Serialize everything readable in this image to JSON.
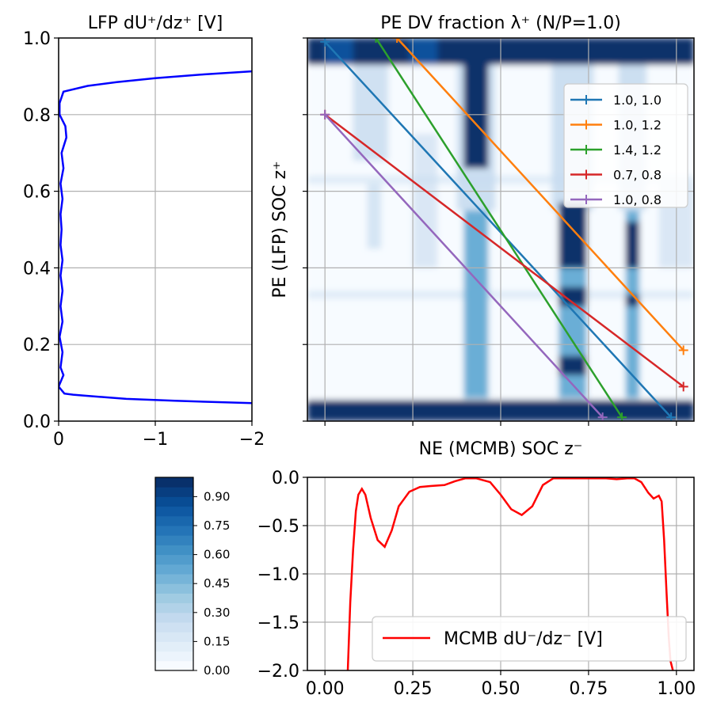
{
  "chart_data": [
    {
      "id": "lfp",
      "type": "line",
      "title": "LFP dU⁺/dz⁺ [V]",
      "xlabel": "",
      "ylabel": "",
      "xlim": [
        0,
        -2
      ],
      "ylim": [
        0,
        1
      ],
      "xticks": [
        "0",
        "−1",
        "−2"
      ],
      "yticks": [
        "0.0",
        "0.2",
        "0.4",
        "0.6",
        "0.8",
        "1.0"
      ],
      "grid": true,
      "color": "#0000ff",
      "series": [
        {
          "name": "LFP dU+/dz+",
          "x": [
            -2.0,
            -1.2,
            -0.7,
            -0.5,
            -0.3,
            -0.15,
            -0.06,
            0.0,
            -0.05,
            -0.02,
            -0.04,
            -0.01,
            -0.04,
            -0.02,
            -0.04,
            -0.02,
            -0.04,
            -0.02,
            -0.03,
            -0.02,
            -0.04,
            -0.02,
            -0.05,
            -0.03,
            -0.08,
            -0.07,
            -0.01,
            -0.01,
            -0.05,
            -0.3,
            -0.6,
            -1.0,
            -1.5,
            -2.0
          ],
          "y": [
            0.047,
            0.053,
            0.058,
            0.062,
            0.066,
            0.069,
            0.072,
            0.09,
            0.12,
            0.14,
            0.18,
            0.22,
            0.26,
            0.3,
            0.34,
            0.38,
            0.42,
            0.46,
            0.5,
            0.54,
            0.58,
            0.62,
            0.66,
            0.7,
            0.74,
            0.77,
            0.8,
            0.83,
            0.86,
            0.875,
            0.885,
            0.895,
            0.905,
            0.913
          ]
        }
      ]
    },
    {
      "id": "dvmap",
      "type": "heatmap",
      "title": "PE DV fraction λ⁺  (N/P=1.0)",
      "xlabel": "NE (MCMB) SOC z⁻",
      "ylabel": "PE (LFP) SOC z⁺",
      "xlim": [
        -0.05,
        1.05
      ],
      "ylim": [
        0,
        1
      ],
      "grid": true,
      "heat_regions": {
        "dark_x_bands": [
          [
            0.395,
            0.465
          ],
          [
            0.665,
            0.745
          ],
          [
            0.855,
            0.895
          ]
        ],
        "dark_y_bands": [
          [
            0.0,
            0.055
          ],
          [
            0.93,
            1.0
          ]
        ],
        "medium_x_bands": [
          [
            0.395,
            0.465
          ],
          [
            0.665,
            0.745
          ],
          [
            0.855,
            0.895
          ]
        ],
        "medium_y_bands": [
          [
            0.06,
            0.55
          ]
        ],
        "dark_patches": [
          [
            0.395,
            0.465,
            0.66,
            1.0
          ],
          [
            0.665,
            0.745,
            0.4,
            0.57
          ],
          [
            0.665,
            0.745,
            0.3,
            0.35
          ],
          [
            0.665,
            0.745,
            0.12,
            0.17
          ],
          [
            0.855,
            0.895,
            0.4,
            0.52
          ],
          [
            0.855,
            0.895,
            0.3,
            0.33
          ]
        ],
        "colors": [
          "#08306b",
          "#08519c",
          "#2171b5",
          "#6baed6",
          "#c6dbef",
          "#f7fbff"
        ]
      },
      "legend_position": "upper right",
      "series": [
        {
          "name": "1.0, 1.0",
          "color": "#1f77b4",
          "x": [
            0.0,
            0.985
          ],
          "y": [
            0.99,
            0.01
          ]
        },
        {
          "name": "1.0, 1.2",
          "color": "#ff7f0e",
          "x": [
            0.205,
            1.02
          ],
          "y": [
            1.0,
            0.185
          ]
        },
        {
          "name": "1.4, 1.2",
          "color": "#2ca02c",
          "x": [
            0.145,
            0.845
          ],
          "y": [
            1.0,
            0.01
          ]
        },
        {
          "name": "0.7, 0.8",
          "color": "#d62728",
          "x": [
            0.0,
            1.02
          ],
          "y": [
            0.8,
            0.09
          ]
        },
        {
          "name": "1.0, 0.8",
          "color": "#9467bd",
          "x": [
            0.0,
            0.79
          ],
          "y": [
            0.8,
            0.01
          ]
        }
      ]
    },
    {
      "id": "mcmb",
      "type": "line",
      "title": "",
      "xlabel": "",
      "ylabel": "",
      "xlim": [
        -0.05,
        1.05
      ],
      "ylim": [
        -2.0,
        0.0
      ],
      "xticks": [
        "0.00",
        "0.25",
        "0.50",
        "0.75",
        "1.00"
      ],
      "yticks": [
        "0.0",
        "−0.5",
        "−1.0",
        "−1.5",
        "−2.0"
      ],
      "grid": true,
      "legend_position": "lower right",
      "legend_label": "MCMB dU⁻/dz⁻  [V]",
      "color": "#ff0000",
      "series": [
        {
          "name": "MCMB dU-/dz-",
          "x": [
            0.065,
            0.072,
            0.08,
            0.088,
            0.095,
            0.105,
            0.115,
            0.13,
            0.15,
            0.17,
            0.19,
            0.21,
            0.24,
            0.27,
            0.3,
            0.34,
            0.37,
            0.4,
            0.43,
            0.47,
            0.5,
            0.53,
            0.56,
            0.59,
            0.62,
            0.65,
            0.7,
            0.75,
            0.8,
            0.83,
            0.86,
            0.88,
            0.9,
            0.92,
            0.935,
            0.95,
            0.958,
            0.965,
            0.972,
            0.978,
            0.983,
            0.99
          ],
          "y": [
            -2.0,
            -1.3,
            -0.75,
            -0.35,
            -0.18,
            -0.12,
            -0.18,
            -0.42,
            -0.65,
            -0.72,
            -0.55,
            -0.3,
            -0.15,
            -0.1,
            -0.09,
            -0.08,
            -0.04,
            -0.01,
            -0.01,
            -0.05,
            -0.18,
            -0.33,
            -0.39,
            -0.3,
            -0.08,
            -0.01,
            -0.01,
            -0.01,
            -0.01,
            -0.02,
            -0.01,
            -0.01,
            -0.05,
            -0.16,
            -0.22,
            -0.19,
            -0.25,
            -0.65,
            -1.2,
            -1.65,
            -1.9,
            -2.0
          ]
        }
      ]
    },
    {
      "id": "colorbar",
      "type": "colorbar",
      "range": [
        0,
        1
      ],
      "ticks": [
        "0.00",
        "0.15",
        "0.30",
        "0.45",
        "0.60",
        "0.75",
        "0.90"
      ],
      "tick_values": [
        0.0,
        0.15,
        0.3,
        0.45,
        0.6,
        0.75,
        0.9
      ],
      "levels": 20,
      "colors": [
        "#f7fbff",
        "#deebf7",
        "#c6dbef",
        "#9ecae1",
        "#6baed6",
        "#4292c6",
        "#2171b5",
        "#08519c",
        "#08306b"
      ]
    }
  ]
}
